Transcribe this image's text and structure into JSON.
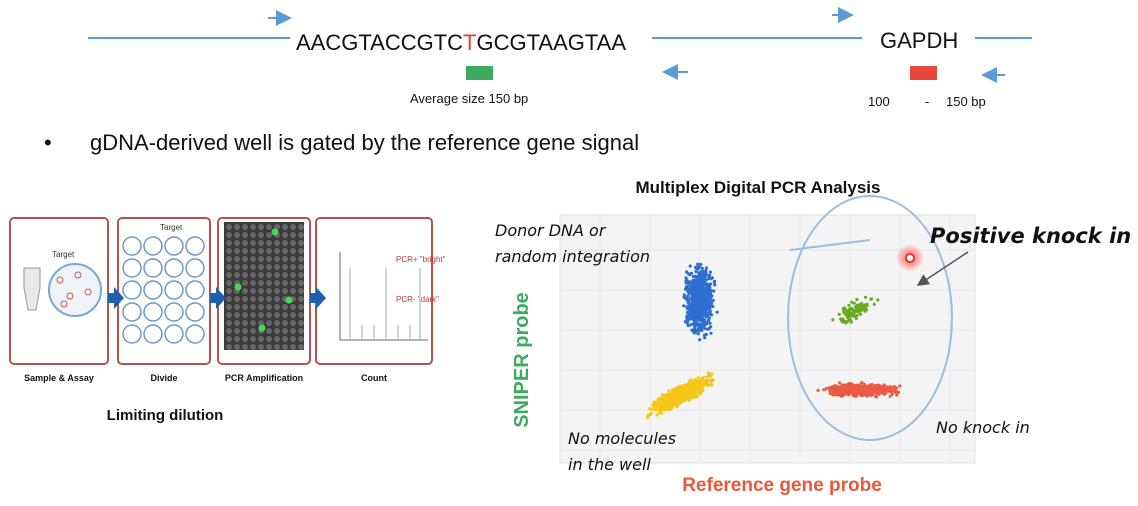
{
  "header": {
    "sequence_left": "AACGTACCGTC",
    "sequence_mutation": "T",
    "sequence_right": "GCGTAAGTAA",
    "reference_gene": "GAPDH",
    "amplicon_label": "Average size 150 bp",
    "reference_range": [
      "100",
      "-",
      "150 bp"
    ]
  },
  "bullet": "gDNA-derived well is gated by the reference gene signal",
  "workflow": {
    "steps": [
      "Sample & Assay",
      "Divide",
      "PCR Amplification",
      "Count"
    ],
    "target": "Target",
    "bright": "PCR+ \"bright\"",
    "dark": "PCR- \"dark\"",
    "caption": "Limiting dilution"
  },
  "plot": {
    "title": "Multiplex Digital PCR Analysis",
    "y_label": "SNIPER probe",
    "x_label": "Reference gene probe",
    "donor": [
      "Donor DNA or",
      "random integration"
    ],
    "positive": "Positive knock in",
    "negative": "No knock in",
    "empty": [
      "No molecules",
      "in the well"
    ]
  }
}
